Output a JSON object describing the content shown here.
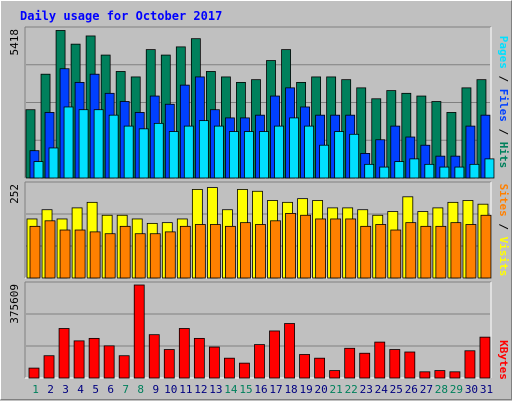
{
  "title": "Daily usage for October 2017",
  "colors": {
    "background": "#C0C0C0",
    "title": "#0000FF",
    "hits": "#00805C",
    "files": "#0040FF",
    "pages": "#00E0FF",
    "visits": "#FFFF00",
    "sites": "#FF8000",
    "kbytes": "#FF0000",
    "weekend_label": "#00805C",
    "weekday_label": "#000080"
  },
  "right_labels": {
    "top": [
      "Pages",
      "Files",
      "Hits"
    ],
    "middle": [
      "Sites",
      "Visits"
    ],
    "bottom": [
      "KBytes"
    ],
    "separator": " / "
  },
  "chart_data": [
    {
      "type": "bar",
      "panel": "top",
      "max_label": "5418",
      "ylim": [
        0,
        5418
      ],
      "categories": [
        "1",
        "2",
        "3",
        "4",
        "5",
        "6",
        "7",
        "8",
        "9",
        "10",
        "11",
        "12",
        "13",
        "14",
        "15",
        "16",
        "17",
        "18",
        "19",
        "20",
        "21",
        "22",
        "23",
        "24",
        "25",
        "26",
        "27",
        "28",
        "29",
        "30",
        "31"
      ],
      "weekend_days": [
        "1",
        "7",
        "8",
        "14",
        "15",
        "21",
        "22",
        "28",
        "29"
      ],
      "series": [
        {
          "name": "Hits",
          "values": [
            2500,
            3800,
            5400,
            4900,
            5200,
            4500,
            3900,
            3700,
            4700,
            4500,
            4800,
            5100,
            3900,
            3700,
            3500,
            3600,
            4300,
            4700,
            3500,
            3700,
            3700,
            3600,
            3300,
            2900,
            3200,
            3100,
            3000,
            2800,
            2400,
            3300,
            3600
          ]
        },
        {
          "name": "Files",
          "values": [
            1000,
            2400,
            4000,
            3500,
            3800,
            3100,
            2800,
            2400,
            3000,
            2700,
            3400,
            3700,
            2500,
            2200,
            2200,
            2300,
            3000,
            3300,
            2600,
            2300,
            2300,
            2300,
            900,
            1400,
            1900,
            1500,
            1200,
            800,
            800,
            1900,
            2300
          ]
        },
        {
          "name": "Pages",
          "values": [
            600,
            1100,
            2600,
            2500,
            2500,
            2300,
            1900,
            1800,
            2000,
            1700,
            1900,
            2100,
            1900,
            1700,
            1700,
            1700,
            1900,
            2200,
            1900,
            1200,
            1700,
            1600,
            500,
            400,
            600,
            700,
            500,
            400,
            400,
            500,
            700
          ]
        }
      ]
    },
    {
      "type": "bar",
      "panel": "middle",
      "max_label": "252",
      "ylim": [
        0,
        252
      ],
      "categories": [
        "1",
        "2",
        "3",
        "4",
        "5",
        "6",
        "7",
        "8",
        "9",
        "10",
        "11",
        "12",
        "13",
        "14",
        "15",
        "16",
        "17",
        "18",
        "19",
        "20",
        "21",
        "22",
        "23",
        "24",
        "25",
        "26",
        "27",
        "28",
        "29",
        "30",
        "31"
      ],
      "series": [
        {
          "name": "Visits",
          "values": [
            160,
            185,
            160,
            190,
            205,
            170,
            170,
            160,
            148,
            150,
            160,
            240,
            245,
            185,
            240,
            235,
            210,
            205,
            215,
            210,
            190,
            190,
            185,
            170,
            180,
            220,
            180,
            190,
            205,
            210,
            200
          ]
        },
        {
          "name": "Sites",
          "values": [
            140,
            155,
            130,
            130,
            125,
            120,
            140,
            120,
            120,
            125,
            140,
            145,
            145,
            140,
            150,
            145,
            155,
            175,
            170,
            160,
            160,
            160,
            140,
            145,
            130,
            150,
            140,
            140,
            150,
            145,
            170
          ]
        }
      ]
    },
    {
      "type": "bar",
      "panel": "bottom",
      "max_label": "375609",
      "ylim": [
        0,
        375609
      ],
      "categories": [
        "1",
        "2",
        "3",
        "4",
        "5",
        "6",
        "7",
        "8",
        "9",
        "10",
        "11",
        "12",
        "13",
        "14",
        "15",
        "16",
        "17",
        "18",
        "19",
        "20",
        "21",
        "22",
        "23",
        "24",
        "25",
        "26",
        "27",
        "28",
        "29",
        "30",
        "31"
      ],
      "series": [
        {
          "name": "KBytes",
          "values": [
            40000,
            90000,
            200000,
            150000,
            160000,
            130000,
            90000,
            375609,
            175000,
            115000,
            200000,
            160000,
            125000,
            80000,
            60000,
            135000,
            190000,
            220000,
            95000,
            80000,
            30000,
            120000,
            100000,
            145000,
            115000,
            105000,
            25000,
            30000,
            25000,
            110000,
            165000
          ]
        }
      ]
    }
  ]
}
